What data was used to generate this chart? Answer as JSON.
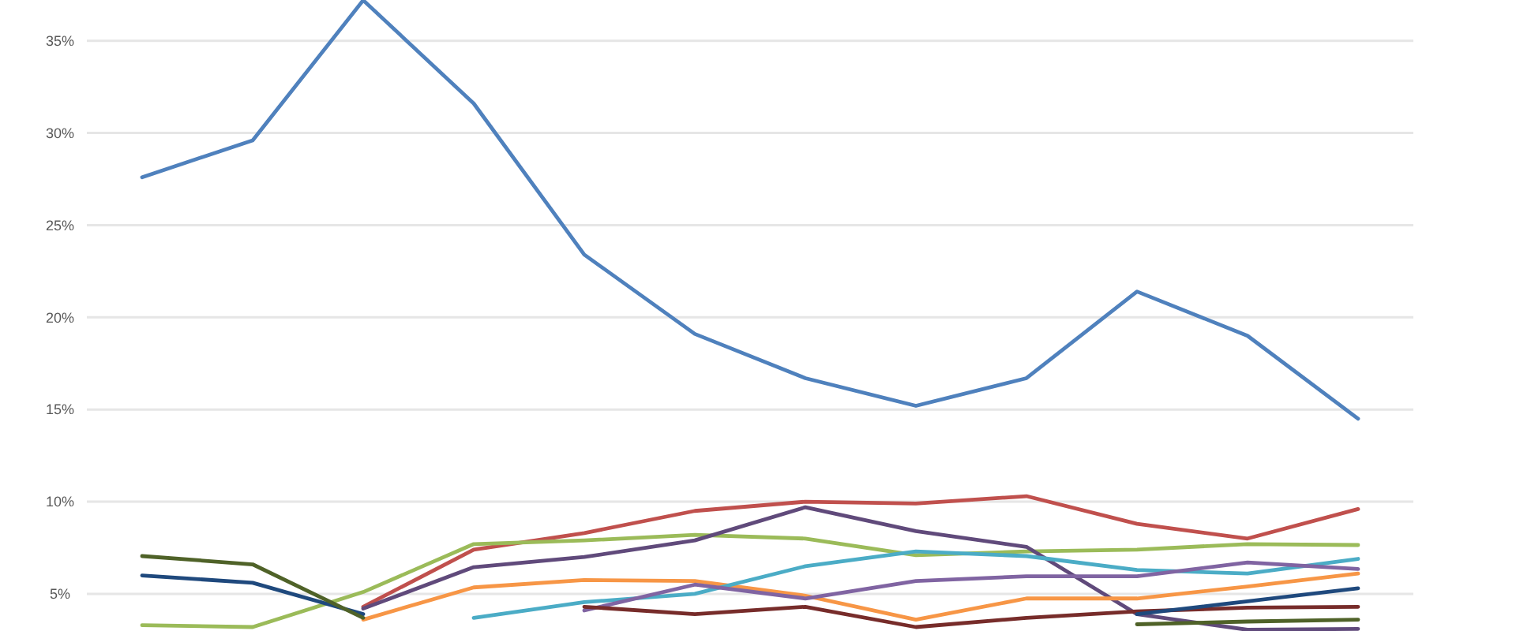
{
  "chart_data": {
    "type": "line",
    "categories": [
      null,
      null,
      null,
      null,
      null,
      null,
      null,
      null,
      null,
      null,
      null,
      null
    ],
    "ylim": [
      2.9,
      37.3
    ],
    "yticks": [
      {
        "value": 5,
        "label": "5%"
      },
      {
        "value": 10,
        "label": "10%"
      },
      {
        "value": 15,
        "label": "15%"
      },
      {
        "value": 20,
        "label": "20%"
      },
      {
        "value": 25,
        "label": "25%"
      },
      {
        "value": 30,
        "label": "30%"
      },
      {
        "value": 35,
        "label": "35%"
      }
    ],
    "grid": "y",
    "tick_labels": "y",
    "series": [
      {
        "color": "#4f81bd",
        "values": [
          27.6,
          29.6,
          37.2,
          31.6,
          23.4,
          19.1,
          16.7,
          15.2,
          16.7,
          21.4,
          19.0,
          14.5
        ]
      },
      {
        "color": "#c0504d",
        "values": [
          null,
          null,
          4.3,
          7.4,
          8.3,
          9.5,
          10.0,
          9.9,
          10.3,
          8.8,
          8.0,
          9.6
        ]
      },
      {
        "color": "#9bbb59",
        "values": [
          3.3,
          3.2,
          5.1,
          7.7,
          7.9,
          8.2,
          8.0,
          7.1,
          7.3,
          7.4,
          7.7,
          7.65
        ]
      },
      {
        "color": "#604a7b",
        "values": [
          null,
          null,
          4.2,
          6.45,
          7.0,
          7.9,
          9.7,
          8.4,
          7.55,
          3.9,
          3.05,
          3.1
        ]
      },
      {
        "color": "#f79646",
        "values": [
          null,
          null,
          3.6,
          5.35,
          5.75,
          5.7,
          4.9,
          3.6,
          4.75,
          4.75,
          5.4,
          6.1
        ]
      },
      {
        "color": "#4bacc6",
        "values": [
          null,
          null,
          null,
          3.7,
          4.55,
          5.0,
          6.5,
          7.3,
          7.05,
          6.3,
          6.1,
          6.9
        ]
      },
      {
        "color": "#8064a2",
        "values": [
          null,
          null,
          null,
          null,
          4.1,
          5.5,
          4.75,
          5.7,
          5.95,
          5.95,
          6.7,
          6.35
        ]
      },
      {
        "color": "#772c2a",
        "values": [
          null,
          null,
          null,
          null,
          4.3,
          3.9,
          4.3,
          3.2,
          3.7,
          4.05,
          4.25,
          4.3
        ]
      },
      {
        "color": "#1f497d",
        "values": [
          6.0,
          5.6,
          3.9,
          null,
          null,
          null,
          null,
          null,
          null,
          3.9,
          4.6,
          5.3
        ]
      },
      {
        "color": "#4f6228",
        "values": [
          7.05,
          6.6,
          3.7,
          null,
          null,
          null,
          null,
          null,
          null,
          3.35,
          3.5,
          3.6
        ]
      }
    ]
  }
}
